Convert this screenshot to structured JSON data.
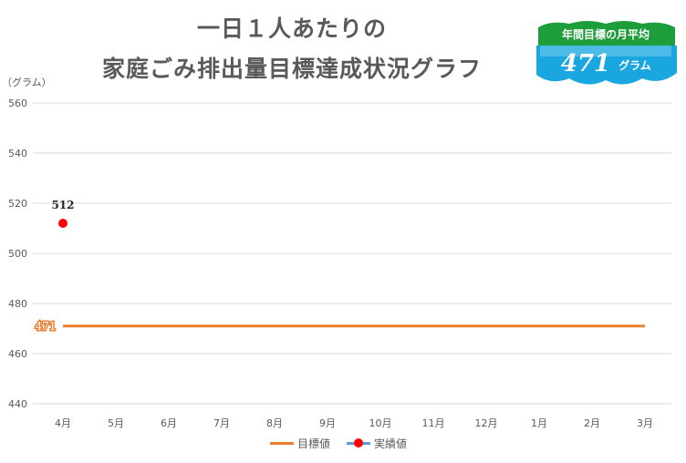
{
  "title_line1": "一日１人あたりの",
  "title_line2": "家庭ごみ排出量目標達成状況グラフ",
  "badge": {
    "label": "年間目標の月平均",
    "value": "471",
    "unit": "グラム"
  },
  "chart_data": {
    "type": "line",
    "title": "一日１人あたりの家庭ごみ排出量目標達成状況グラフ",
    "ylabel": "（グラム）",
    "xlabel": "",
    "ylim": [
      440,
      560
    ],
    "yticks": [
      440,
      460,
      480,
      500,
      520,
      540,
      560
    ],
    "categories": [
      "4月",
      "5月",
      "6月",
      "7月",
      "8月",
      "9月",
      "10月",
      "11月",
      "12月",
      "1月",
      "2月",
      "3月"
    ],
    "series": [
      {
        "name": "目標値",
        "color": "#ED7D31",
        "values": [
          471,
          471,
          471,
          471,
          471,
          471,
          471,
          471,
          471,
          471,
          471,
          471
        ],
        "data_label": "471"
      },
      {
        "name": "実績値",
        "color": "#FF0000",
        "values": [
          512,
          null,
          null,
          null,
          null,
          null,
          null,
          null,
          null,
          null,
          null,
          null
        ],
        "data_label": "512"
      }
    ],
    "grid": true,
    "legend": "bottom"
  }
}
